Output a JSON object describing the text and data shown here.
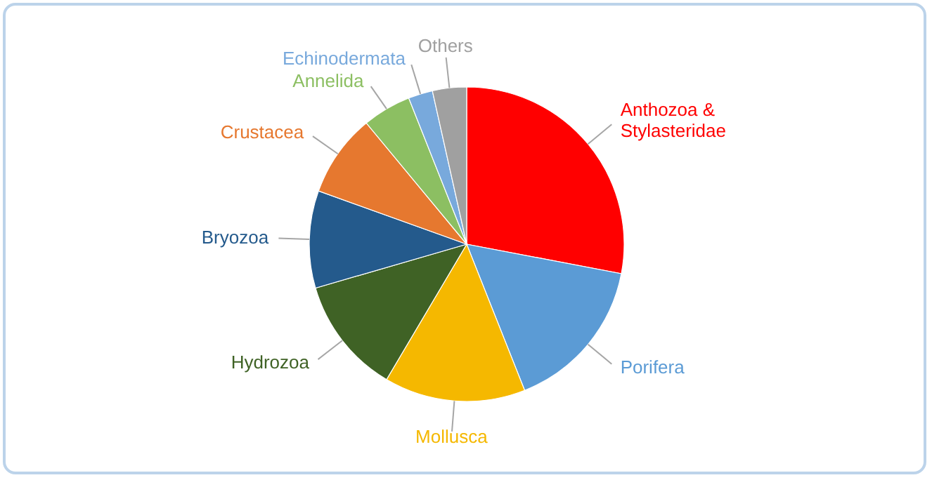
{
  "chart_data": {
    "type": "pie",
    "legend": false,
    "categories": [
      "Anthozoa & Stylasteridae",
      "Porifera",
      "Mollusca",
      "Hydrozoa",
      "Bryozoa",
      "Crustacea",
      "Annelida",
      "Echinodermata",
      "Others"
    ],
    "values": [
      28,
      16,
      14.5,
      12,
      10,
      8.5,
      5,
      2.5,
      3.5
    ],
    "colors": [
      "#ff0000",
      "#5b9bd5",
      "#f5b800",
      "#3f6225",
      "#245a8c",
      "#e6782f",
      "#8cbf62",
      "#78a9dc",
      "#a0a0a0"
    ]
  }
}
